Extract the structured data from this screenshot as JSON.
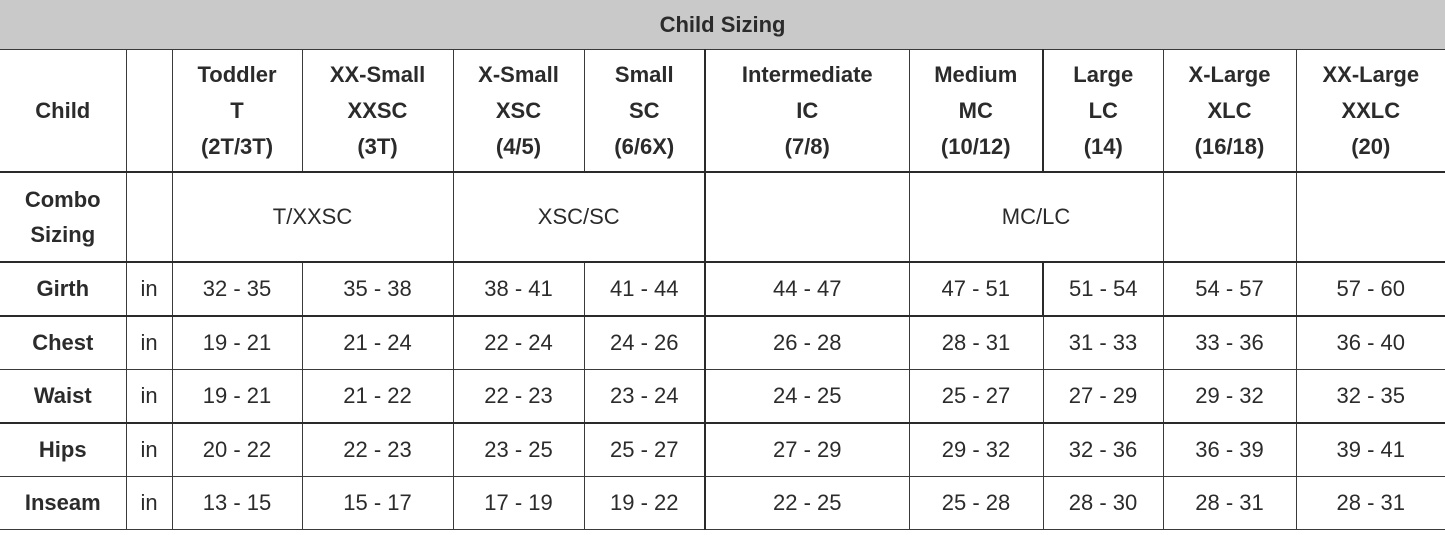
{
  "title": "Child Sizing",
  "header": {
    "corner": "Child",
    "unit_header": "",
    "sizes": [
      {
        "name": "Toddler",
        "code": "T",
        "range": "(2T/3T)"
      },
      {
        "name": "XX-Small",
        "code": "XXSC",
        "range": "(3T)"
      },
      {
        "name": "X-Small",
        "code": "XSC",
        "range": "(4/5)"
      },
      {
        "name": "Small",
        "code": "SC",
        "range": "(6/6X)"
      },
      {
        "name": "Intermediate",
        "code": "IC",
        "range": "(7/8)"
      },
      {
        "name": "Medium",
        "code": "MC",
        "range": "(10/12)"
      },
      {
        "name": "Large",
        "code": "LC",
        "range": "(14)"
      },
      {
        "name": "X-Large",
        "code": "XLC",
        "range": "(16/18)"
      },
      {
        "name": "XX-Large",
        "code": "XXLC",
        "range": "(20)"
      }
    ]
  },
  "combo": {
    "label_line1": "Combo",
    "label_line2": "Sizing",
    "groups": [
      "T/XXSC",
      "XSC/SC",
      "",
      "MC/LC",
      "",
      ""
    ]
  },
  "rows": [
    {
      "label": "Girth",
      "unit": "in",
      "values": [
        "32 - 35",
        "35 - 38",
        "38 - 41",
        "41 - 44",
        "44 - 47",
        "47 - 51",
        "51 - 54",
        "54 - 57",
        "57 - 60"
      ]
    },
    {
      "label": "Chest",
      "unit": "in",
      "values": [
        "19 - 21",
        "21 - 24",
        "22 - 24",
        "24 - 26",
        "26 - 28",
        "28 - 31",
        "31 - 33",
        "33 - 36",
        "36 - 40"
      ]
    },
    {
      "label": "Waist",
      "unit": "in",
      "values": [
        "19 - 21",
        "21 - 22",
        "22 - 23",
        "23 - 24",
        "24 - 25",
        "25 - 27",
        "27 - 29",
        "29 - 32",
        "32 - 35"
      ]
    },
    {
      "label": "Hips",
      "unit": "in",
      "values": [
        "20 - 22",
        "22 - 23",
        "23 - 25",
        "25 - 27",
        "27 - 29",
        "29 - 32",
        "32 - 36",
        "36 - 39",
        "39 - 41"
      ]
    },
    {
      "label": "Inseam",
      "unit": "in",
      "values": [
        "13 - 15",
        "15 - 17",
        "17 - 19",
        "19 - 22",
        "22 - 25",
        "25 - 28",
        "28 - 30",
        "28 - 31",
        "28 - 31"
      ]
    }
  ]
}
